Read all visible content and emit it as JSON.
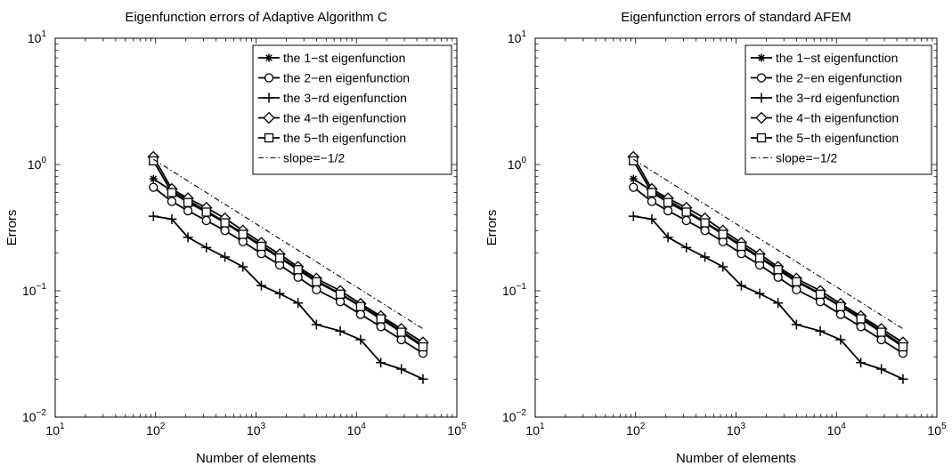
{
  "chart_data": [
    {
      "type": "line",
      "title": "Eigenfunction errors of Adaptive Algorithm C",
      "xlabel": "Number of elements",
      "ylabel": "Errors",
      "xscale": "log",
      "yscale": "log",
      "xlim": [
        10,
        100000
      ],
      "ylim": [
        0.01,
        10
      ],
      "xticks": [
        {
          "v": 10,
          "base": "10",
          "exp": "1"
        },
        {
          "v": 100,
          "base": "10",
          "exp": "2"
        },
        {
          "v": 1000,
          "base": "10",
          "exp": "3"
        },
        {
          "v": 10000,
          "base": "10",
          "exp": "4"
        },
        {
          "v": 100000,
          "base": "10",
          "exp": "5"
        }
      ],
      "yticks": [
        {
          "v": 0.01,
          "base": "10",
          "exp": "−2"
        },
        {
          "v": 0.1,
          "base": "10",
          "exp": "−1"
        },
        {
          "v": 1,
          "base": "10",
          "exp": "0"
        },
        {
          "v": 10,
          "base": "10",
          "exp": "1"
        }
      ],
      "grid": false,
      "legend_position": "top-right",
      "x": [
        95,
        145,
        210,
        320,
        490,
        740,
        1130,
        1720,
        2620,
        4000,
        6900,
        11000,
        17500,
        28000,
        46000
      ],
      "series": [
        {
          "name": "the 1−st eigenfunction",
          "marker": "asterisk",
          "style": "solid",
          "values": [
            0.77,
            0.62,
            0.52,
            0.43,
            0.35,
            0.285,
            0.23,
            0.185,
            0.15,
            0.12,
            0.095,
            0.076,
            0.061,
            0.048,
            0.037
          ]
        },
        {
          "name": "the 2−en eigenfunction",
          "marker": "circle",
          "style": "solid",
          "values": [
            0.66,
            0.51,
            0.43,
            0.36,
            0.3,
            0.245,
            0.197,
            0.16,
            0.128,
            0.102,
            0.082,
            0.065,
            0.052,
            0.041,
            0.032
          ]
        },
        {
          "name": "the 3−rd eigenfunction",
          "marker": "plus",
          "style": "solid",
          "values": [
            0.39,
            0.37,
            0.265,
            0.22,
            0.185,
            0.155,
            0.11,
            0.095,
            0.08,
            0.054,
            0.048,
            0.041,
            0.027,
            0.024,
            0.02
          ]
        },
        {
          "name": "the 4−th eigenfunction",
          "marker": "diamond",
          "style": "solid",
          "values": [
            1.15,
            0.64,
            0.54,
            0.455,
            0.375,
            0.3,
            0.24,
            0.195,
            0.155,
            0.125,
            0.1,
            0.079,
            0.063,
            0.05,
            0.039
          ]
        },
        {
          "name": "the 5−th eigenfunction",
          "marker": "square",
          "style": "solid",
          "values": [
            1.07,
            0.6,
            0.5,
            0.42,
            0.345,
            0.28,
            0.225,
            0.182,
            0.147,
            0.118,
            0.094,
            0.075,
            0.06,
            0.047,
            0.036
          ]
        },
        {
          "name": "slope=−1/2",
          "marker": "none",
          "style": "dashdot",
          "x": [
            95,
            46000
          ],
          "values": [
            1.1,
            0.05
          ]
        }
      ]
    },
    {
      "type": "line",
      "title": "Eigenfunction errors of standard AFEM",
      "xlabel": "Number of elements",
      "ylabel": "Errors",
      "xscale": "log",
      "yscale": "log",
      "xlim": [
        10,
        100000
      ],
      "ylim": [
        0.01,
        10
      ],
      "xticks": [
        {
          "v": 10,
          "base": "10",
          "exp": "1"
        },
        {
          "v": 100,
          "base": "10",
          "exp": "2"
        },
        {
          "v": 1000,
          "base": "10",
          "exp": "3"
        },
        {
          "v": 10000,
          "base": "10",
          "exp": "4"
        },
        {
          "v": 100000,
          "base": "10",
          "exp": "5"
        }
      ],
      "yticks": [
        {
          "v": 0.01,
          "base": "10",
          "exp": "−2"
        },
        {
          "v": 0.1,
          "base": "10",
          "exp": "−1"
        },
        {
          "v": 1,
          "base": "10",
          "exp": "0"
        },
        {
          "v": 10,
          "base": "10",
          "exp": "1"
        }
      ],
      "grid": false,
      "legend_position": "top-right",
      "x": [
        95,
        145,
        210,
        320,
        490,
        740,
        1130,
        1720,
        2620,
        4000,
        6900,
        11000,
        17500,
        28000,
        46000
      ],
      "series": [
        {
          "name": "the 1−st eigenfunction",
          "marker": "asterisk",
          "style": "solid",
          "values": [
            0.77,
            0.62,
            0.52,
            0.43,
            0.35,
            0.285,
            0.23,
            0.185,
            0.15,
            0.12,
            0.095,
            0.076,
            0.061,
            0.048,
            0.037
          ]
        },
        {
          "name": "the 2−en eigenfunction",
          "marker": "circle",
          "style": "solid",
          "values": [
            0.66,
            0.51,
            0.43,
            0.36,
            0.3,
            0.245,
            0.197,
            0.16,
            0.128,
            0.102,
            0.082,
            0.065,
            0.052,
            0.041,
            0.032
          ]
        },
        {
          "name": "the 3−rd eigenfunction",
          "marker": "plus",
          "style": "solid",
          "values": [
            0.39,
            0.37,
            0.265,
            0.22,
            0.185,
            0.155,
            0.11,
            0.095,
            0.08,
            0.054,
            0.048,
            0.041,
            0.027,
            0.024,
            0.02
          ]
        },
        {
          "name": "the 4−th eigenfunction",
          "marker": "diamond",
          "style": "solid",
          "values": [
            1.15,
            0.64,
            0.54,
            0.455,
            0.375,
            0.3,
            0.24,
            0.195,
            0.155,
            0.125,
            0.1,
            0.079,
            0.063,
            0.05,
            0.039
          ]
        },
        {
          "name": "the 5−th eigenfunction",
          "marker": "square",
          "style": "solid",
          "values": [
            1.07,
            0.6,
            0.5,
            0.42,
            0.345,
            0.28,
            0.225,
            0.182,
            0.147,
            0.118,
            0.094,
            0.075,
            0.06,
            0.047,
            0.036
          ]
        },
        {
          "name": "slope=−1/2",
          "marker": "none",
          "style": "dashdot",
          "x": [
            95,
            46000
          ],
          "values": [
            1.1,
            0.05
          ]
        }
      ]
    }
  ]
}
